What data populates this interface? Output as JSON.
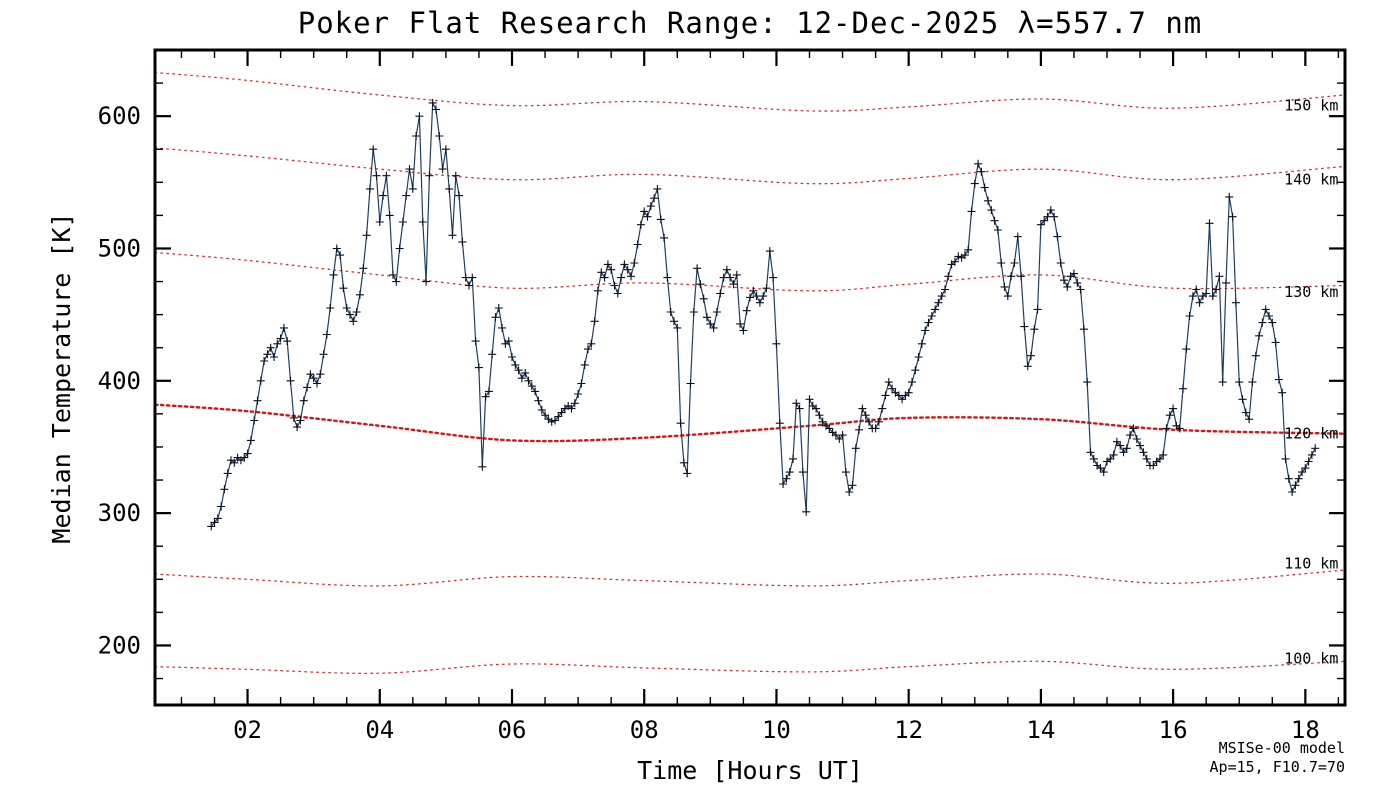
{
  "chart_data": {
    "type": "line",
    "title": "Poker Flat Research Range: 12-Dec-2025 λ=557.7 nm",
    "xlabel": "Time [Hours UT]",
    "ylabel": "Median Temperature [K]",
    "xlim": [
      0.6,
      18.6
    ],
    "ylim": [
      155,
      650
    ],
    "grid": false,
    "legend": "none",
    "x_ticks": {
      "values": [
        2,
        4,
        6,
        8,
        10,
        12,
        14,
        16,
        18
      ],
      "labels": [
        "02",
        "04",
        "06",
        "08",
        "10",
        "12",
        "14",
        "16",
        "18"
      ],
      "minor_step": 0.5
    },
    "y_ticks": {
      "values": [
        200,
        300,
        400,
        500,
        600
      ],
      "labels": [
        "200",
        "300",
        "400",
        "500",
        "600"
      ],
      "minor_step": 25
    },
    "series": {
      "name": "Median temperature",
      "marker": "+",
      "color": "#1f4060",
      "marker_color": "#0a0f1e",
      "t_start": 1.45,
      "t_step": 0.05,
      "values": [
        290,
        293,
        296,
        305,
        318,
        330,
        340,
        338,
        342,
        340,
        342,
        345,
        355,
        370,
        385,
        400,
        415,
        420,
        425,
        418,
        428,
        432,
        440,
        430,
        400,
        372,
        365,
        370,
        385,
        395,
        405,
        402,
        398,
        405,
        420,
        435,
        455,
        480,
        500,
        495,
        470,
        455,
        450,
        445,
        452,
        465,
        485,
        510,
        545,
        575,
        555,
        520,
        540,
        555,
        525,
        480,
        475,
        500,
        520,
        540,
        560,
        545,
        585,
        600,
        520,
        475,
        555,
        610,
        605,
        585,
        560,
        575,
        545,
        510,
        555,
        540,
        505,
        478,
        472,
        478,
        430,
        410,
        335,
        388,
        392,
        420,
        448,
        455,
        440,
        428,
        430,
        418,
        412,
        408,
        402,
        406,
        400,
        396,
        392,
        385,
        378,
        374,
        371,
        369,
        370,
        373,
        376,
        379,
        381,
        379,
        383,
        390,
        398,
        412,
        424,
        428,
        445,
        468,
        482,
        478,
        488,
        484,
        472,
        466,
        478,
        488,
        484,
        479,
        489,
        503,
        518,
        528,
        524,
        532,
        538,
        545,
        522,
        508,
        478,
        452,
        445,
        440,
        368,
        338,
        330,
        398,
        452,
        485,
        473,
        462,
        448,
        443,
        440,
        452,
        466,
        478,
        484,
        478,
        473,
        480,
        443,
        438,
        453,
        463,
        468,
        464,
        459,
        464,
        470,
        498,
        478,
        428,
        368,
        322,
        326,
        331,
        341,
        383,
        379,
        331,
        301,
        386,
        381,
        379,
        374,
        369,
        366,
        364,
        361,
        359,
        356,
        359,
        331,
        316,
        321,
        349,
        363,
        379,
        374,
        369,
        364,
        364,
        369,
        379,
        389,
        399,
        394,
        391,
        389,
        386,
        389,
        391,
        399,
        408,
        418,
        428,
        438,
        444,
        449,
        454,
        459,
        464,
        469,
        479,
        488,
        490,
        494,
        493,
        495,
        499,
        528,
        549,
        564,
        558,
        546,
        536,
        529,
        521,
        514,
        489,
        471,
        464,
        479,
        489,
        509,
        479,
        441,
        411,
        419,
        439,
        454,
        518,
        521,
        524,
        529,
        524,
        509,
        489,
        476,
        471,
        479,
        481,
        474,
        469,
        439,
        399,
        346,
        341,
        336,
        334,
        331,
        339,
        341,
        344,
        354,
        351,
        346,
        349,
        359,
        364,
        356,
        351,
        346,
        341,
        336,
        336,
        339,
        341,
        344,
        364,
        374,
        379,
        366,
        364,
        394,
        424,
        449,
        464,
        469,
        459,
        464,
        466,
        519,
        464,
        469,
        479,
        399,
        474,
        539,
        524,
        459,
        399,
        386,
        376,
        371,
        399,
        419,
        434,
        444,
        454,
        449,
        444,
        429,
        401,
        391,
        341,
        326,
        316,
        321,
        326,
        331,
        334,
        339,
        344,
        349
      ]
    },
    "model": {
      "name": "MSISe-00 model",
      "color": "#cd3333",
      "bold_color": "#d01818",
      "label_t": 18.5,
      "t": [
        0.6,
        2,
        4,
        6,
        8,
        10.5,
        12,
        14,
        16,
        18.6
      ],
      "curves": [
        {
          "label": "150 km",
          "T": [
            633,
            627,
            616,
            608,
            611,
            604,
            607,
            613,
            606,
            616
          ],
          "label_T": 608,
          "bold": false
        },
        {
          "label": "140 km",
          "T": [
            576,
            570,
            560,
            552,
            556,
            549,
            553,
            560,
            552,
            562
          ],
          "label_T": 552,
          "bold": false
        },
        {
          "label": "130 km",
          "T": [
            497,
            491,
            480,
            470,
            474,
            468,
            473,
            480,
            470,
            472
          ],
          "label_T": 467,
          "bold": false
        },
        {
          "label": "120 km",
          "T": [
            382,
            377,
            366,
            355,
            357,
            366,
            372,
            371,
            363,
            360
          ],
          "label_T": 360,
          "bold": true
        },
        {
          "label": "110 km",
          "T": [
            254,
            250,
            245,
            252,
            249,
            245,
            249,
            254,
            247,
            257
          ],
          "label_T": 262,
          "bold": false
        },
        {
          "label": "100 km",
          "T": [
            184,
            182,
            179,
            186,
            183,
            180,
            184,
            188,
            182,
            188
          ],
          "label_T": 190,
          "bold": false
        }
      ]
    },
    "annotations": {
      "line1": "MSISe-00 model",
      "line2": "Ap=15, F10.7=70",
      "color": "#cd3333"
    }
  }
}
